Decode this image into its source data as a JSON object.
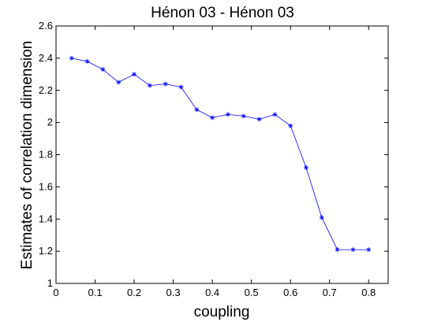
{
  "chart_data": {
    "type": "line",
    "title": "Hénon 03 - Hénon 03",
    "xlabel": "coupling",
    "ylabel": "Estimates of correlation dimension",
    "xlim": [
      0,
      0.85
    ],
    "ylim": [
      1,
      2.6
    ],
    "xticks": [
      "0",
      "0.1",
      "0.2",
      "0.3",
      "0.4",
      "0.5",
      "0.6",
      "0.7",
      "0.8"
    ],
    "yticks": [
      "1",
      "1.2",
      "1.4",
      "1.6",
      "1.8",
      "2",
      "2.2",
      "2.4",
      "2.6"
    ],
    "grid": false,
    "marker": "asterisk",
    "line_color": "#0000ff",
    "series": [
      {
        "x": [
          0.04,
          0.08,
          0.12,
          0.16,
          0.2,
          0.24,
          0.28,
          0.32,
          0.36,
          0.4,
          0.44,
          0.48,
          0.52,
          0.56,
          0.6,
          0.64,
          0.68,
          0.72,
          0.76,
          0.8
        ],
        "y": [
          2.4,
          2.38,
          2.33,
          2.25,
          2.3,
          2.23,
          2.24,
          2.22,
          2.08,
          2.03,
          2.05,
          2.04,
          2.02,
          2.05,
          1.98,
          1.72,
          1.41,
          1.21,
          1.21,
          1.21
        ]
      }
    ]
  }
}
